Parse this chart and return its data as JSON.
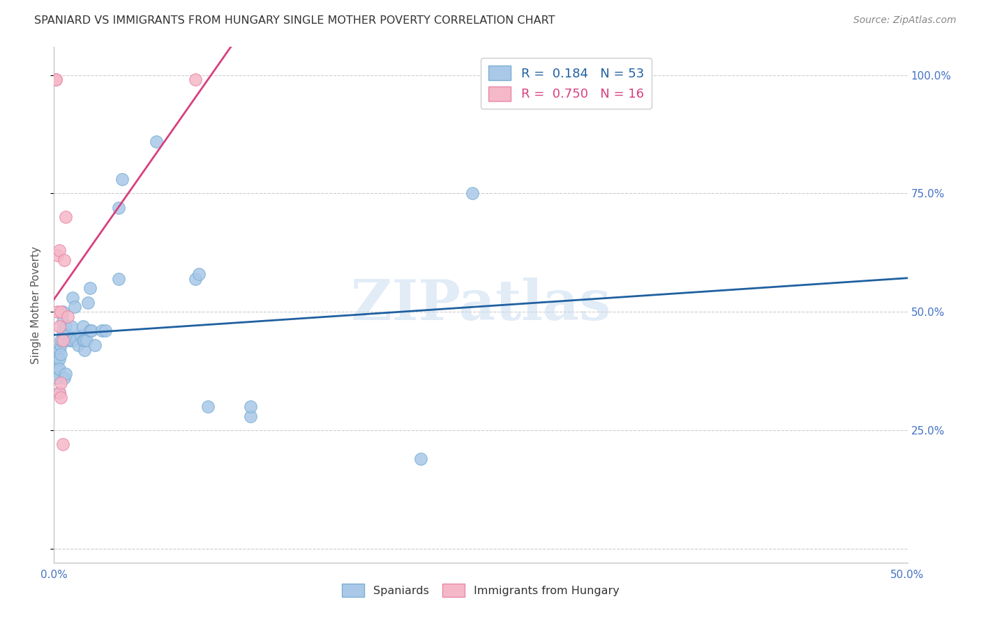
{
  "title": "SPANIARD VS IMMIGRANTS FROM HUNGARY SINGLE MOTHER POVERTY CORRELATION CHART",
  "source": "Source: ZipAtlas.com",
  "ylabel": "Single Mother Poverty",
  "xlim": [
    0.0,
    0.5
  ],
  "ylim": [
    0.0,
    1.0
  ],
  "xticks": [
    0.0,
    0.05,
    0.1,
    0.15,
    0.2,
    0.25,
    0.3,
    0.35,
    0.4,
    0.45,
    0.5
  ],
  "xtick_labels": [
    "0.0%",
    "",
    "",
    "",
    "",
    "",
    "",
    "",
    "",
    "",
    "50.0%"
  ],
  "ytick_labels": [
    "",
    "25.0%",
    "50.0%",
    "75.0%",
    "100.0%"
  ],
  "yticks": [
    0.0,
    0.25,
    0.5,
    0.75,
    1.0
  ],
  "spaniards_x": [
    0.001,
    0.001,
    0.002,
    0.002,
    0.002,
    0.003,
    0.003,
    0.003,
    0.003,
    0.004,
    0.004,
    0.004,
    0.005,
    0.005,
    0.005,
    0.005,
    0.006,
    0.006,
    0.007,
    0.007,
    0.008,
    0.009,
    0.01,
    0.01,
    0.011,
    0.011,
    0.012,
    0.013,
    0.014,
    0.016,
    0.017,
    0.017,
    0.018,
    0.018,
    0.019,
    0.02,
    0.021,
    0.021,
    0.022,
    0.024,
    0.028,
    0.03,
    0.038,
    0.038,
    0.04,
    0.06,
    0.083,
    0.085,
    0.09,
    0.115,
    0.115,
    0.215,
    0.245
  ],
  "spaniards_y": [
    0.37,
    0.41,
    0.4,
    0.38,
    0.36,
    0.33,
    0.42,
    0.4,
    0.38,
    0.43,
    0.41,
    0.44,
    0.44,
    0.46,
    0.5,
    0.48,
    0.44,
    0.36,
    0.47,
    0.37,
    0.45,
    0.44,
    0.44,
    0.47,
    0.53,
    0.44,
    0.51,
    0.44,
    0.43,
    0.45,
    0.44,
    0.47,
    0.42,
    0.44,
    0.44,
    0.52,
    0.55,
    0.46,
    0.46,
    0.43,
    0.46,
    0.46,
    0.57,
    0.72,
    0.78,
    0.86,
    0.57,
    0.58,
    0.3,
    0.28,
    0.3,
    0.19,
    0.75
  ],
  "hungary_x": [
    0.001,
    0.001,
    0.002,
    0.002,
    0.003,
    0.003,
    0.003,
    0.004,
    0.004,
    0.004,
    0.005,
    0.005,
    0.006,
    0.007,
    0.008,
    0.083
  ],
  "hungary_y": [
    0.99,
    0.99,
    0.62,
    0.5,
    0.63,
    0.47,
    0.33,
    0.5,
    0.35,
    0.32,
    0.22,
    0.44,
    0.61,
    0.7,
    0.49,
    0.99
  ],
  "spaniards_R": 0.184,
  "spaniards_N": 53,
  "hungary_R": 0.75,
  "hungary_N": 16,
  "blue_scatter_color": "#aac8e8",
  "blue_scatter_edge": "#7aafd4",
  "pink_scatter_color": "#f5b8c8",
  "pink_scatter_edge": "#e888a8",
  "blue_line_color": "#2060a0",
  "pink_line_color": "#d84080",
  "watermark": "ZIPatlas",
  "blue_label_color": "#4472C4",
  "title_color": "#333333",
  "source_color": "#888888"
}
